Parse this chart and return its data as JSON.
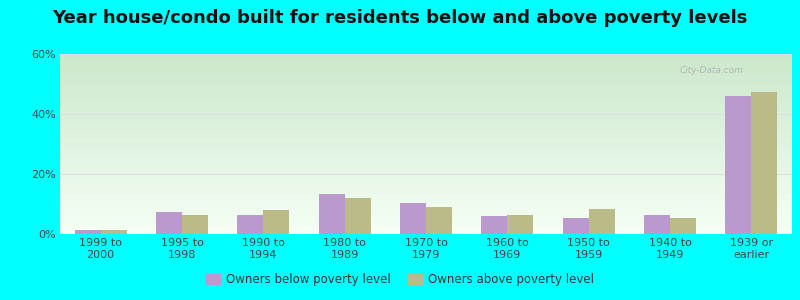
{
  "title": "Year house/condo built for residents below and above poverty levels",
  "categories": [
    "1999 to\n2000",
    "1995 to\n1998",
    "1990 to\n1994",
    "1980 to\n1989",
    "1970 to\n1979",
    "1960 to\n1969",
    "1950 to\n1959",
    "1940 to\n1949",
    "1939 or\nearlier"
  ],
  "below_poverty": [
    1.5,
    7.5,
    6.5,
    13.5,
    10.5,
    6.0,
    5.5,
    6.5,
    46.0
  ],
  "above_poverty": [
    1.5,
    6.5,
    8.0,
    12.0,
    9.0,
    6.5,
    8.5,
    5.5,
    47.5
  ],
  "below_color": "#bb99cc",
  "above_color": "#bbbb88",
  "ylim": [
    0,
    60
  ],
  "yticks": [
    0,
    20,
    40,
    60
  ],
  "ytick_labels": [
    "0%",
    "20%",
    "40%",
    "60%"
  ],
  "grid_color": "#dddddd",
  "outer_background": "#00ffff",
  "title_fontsize": 13,
  "tick_fontsize": 8,
  "legend_below_label": "Owners below poverty level",
  "legend_above_label": "Owners above poverty level",
  "bar_width": 0.32
}
